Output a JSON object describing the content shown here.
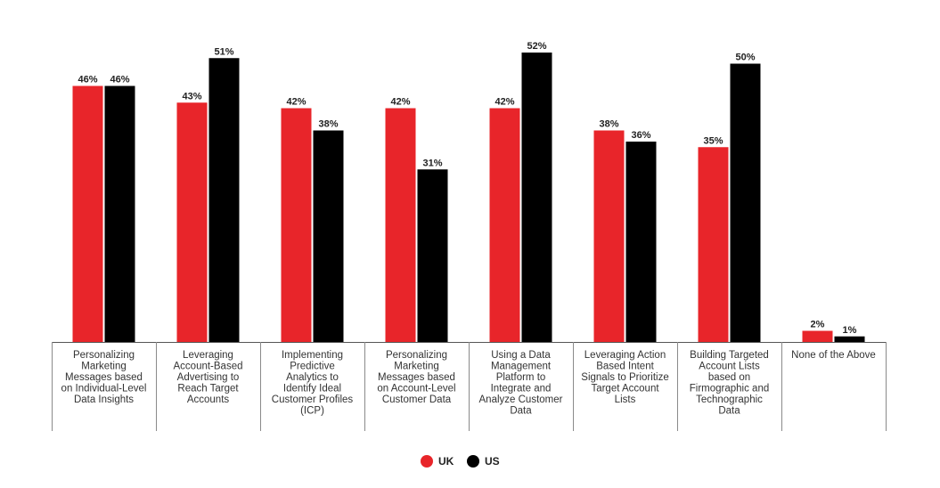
{
  "chart_data": {
    "type": "bar",
    "title": "",
    "xlabel": "",
    "ylabel": "",
    "ylim": [
      0,
      55
    ],
    "grid": false,
    "legend_position": "bottom-center",
    "categories": [
      "Personalizing Marketing Messages based on Individual-Level Data Insights",
      "Leveraging Account-Based Advertising to Reach Target Accounts",
      "Implementing Predictive Analytics to Identify Ideal Customer Profiles (ICP)",
      "Personalizing Marketing Messages based on Account-Level Customer Data",
      "Using a Data Management Platform to Integrate and Analyze Customer Data",
      "Leveraging Action Based Intent Signals to Prioritize Target Account Lists",
      "Building Targeted Account Lists based on Firmographic and Technographic Data",
      "None of the Above"
    ],
    "category_lines": [
      [
        "Personalizing",
        "Marketing",
        "Messages based",
        "on Individual-Level",
        "Data Insights"
      ],
      [
        "Leveraging",
        "Account-Based",
        "Advertising to",
        "Reach Target",
        "Accounts"
      ],
      [
        "Implementing",
        "Predictive",
        "Analytics to",
        "Identify Ideal",
        "Customer Profiles",
        "(ICP)"
      ],
      [
        "Personalizing",
        "Marketing",
        "Messages based",
        "on Account-Level",
        "Customer Data"
      ],
      [
        "Using a Data",
        "Management",
        "Platform to",
        "Integrate and",
        "Analyze Customer",
        "Data"
      ],
      [
        "Leveraging Action",
        "Based Intent",
        "Signals to Prioritize",
        "Target Account",
        "Lists"
      ],
      [
        "Building Targeted",
        "Account Lists",
        "based on",
        "Firmographic and",
        "Technographic",
        "Data"
      ],
      [
        "None of the Above"
      ]
    ],
    "series": [
      {
        "name": "UK",
        "color": "#e8252a",
        "values": [
          46,
          43,
          42,
          42,
          42,
          38,
          35,
          2
        ],
        "labels": [
          "46%",
          "43%",
          "42%",
          "42%",
          "42%",
          "38%",
          "35%",
          "2%"
        ]
      },
      {
        "name": "US",
        "color": "#000000",
        "values": [
          46,
          51,
          38,
          31,
          52,
          36,
          50,
          1
        ],
        "labels": [
          "46%",
          "51%",
          "38%",
          "31%",
          "52%",
          "36%",
          "50%",
          "1%"
        ]
      }
    ]
  },
  "legend": {
    "items": [
      {
        "label": "UK",
        "color": "#e8252a"
      },
      {
        "label": "US",
        "color": "#000000"
      }
    ]
  },
  "colors": {
    "axis": "#555555",
    "divider": "#8a8a8a"
  }
}
